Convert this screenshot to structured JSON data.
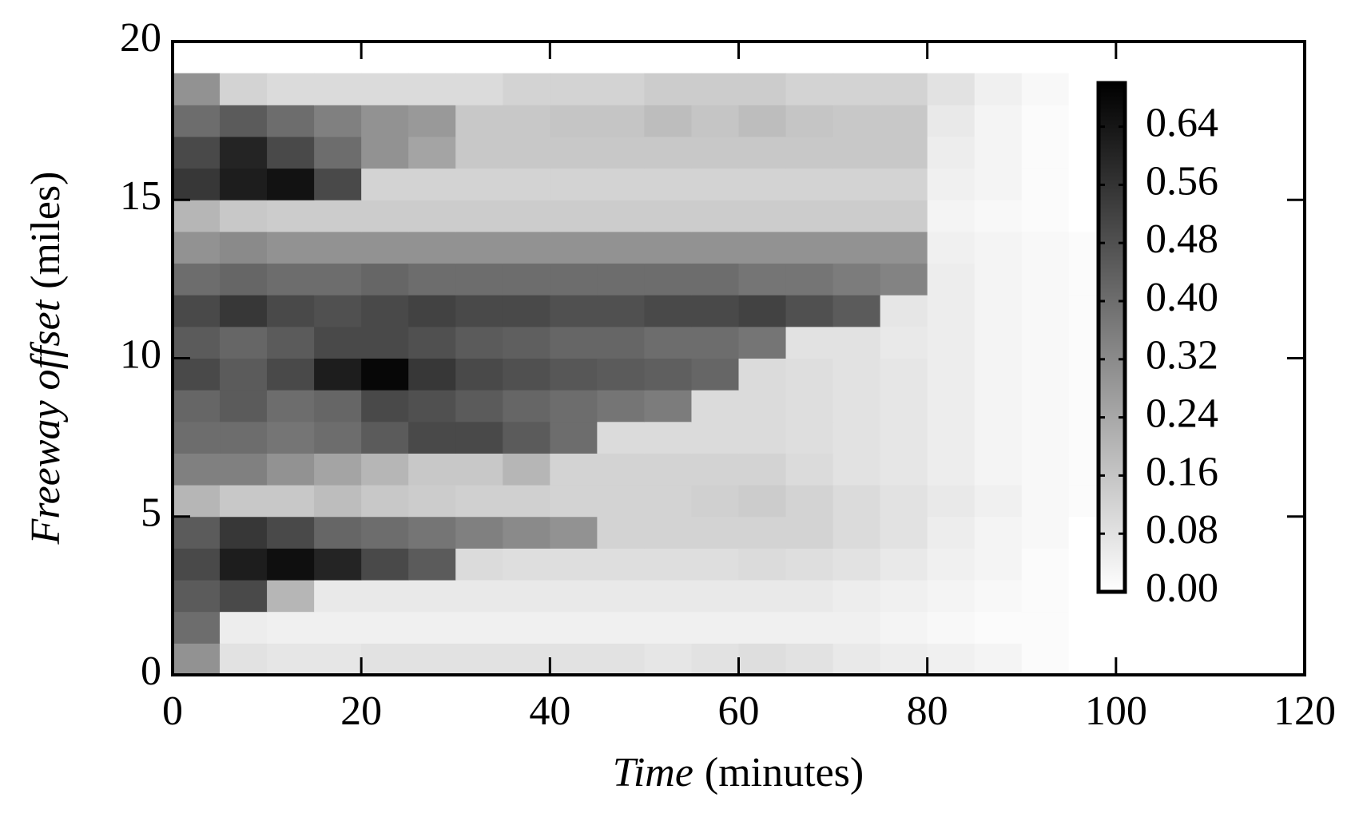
{
  "chart_data": {
    "type": "heatmap",
    "xlabel": [
      "Time",
      "(minutes)"
    ],
    "ylabel": [
      "Freeway offset",
      "(miles)"
    ],
    "x_bins": [
      0,
      5,
      10,
      15,
      20,
      25,
      30,
      35,
      40,
      45,
      50,
      55,
      60,
      65,
      70,
      75,
      80,
      85,
      90,
      95,
      100
    ],
    "y_bins": [
      0,
      1,
      2,
      3,
      4,
      5,
      6,
      7,
      8,
      9,
      10,
      11,
      12,
      13,
      14,
      15,
      16,
      17,
      18,
      19
    ],
    "z": [
      [
        0.3,
        0.08,
        0.07,
        0.07,
        0.08,
        0.08,
        0.08,
        0.08,
        0.08,
        0.08,
        0.07,
        0.08,
        0.09,
        0.08,
        0.06,
        0.05,
        0.04,
        0.03,
        0.01,
        0.0
      ],
      [
        0.4,
        0.05,
        0.04,
        0.04,
        0.04,
        0.04,
        0.04,
        0.04,
        0.04,
        0.04,
        0.04,
        0.04,
        0.04,
        0.04,
        0.04,
        0.03,
        0.02,
        0.01,
        0.01,
        0.0
      ],
      [
        0.45,
        0.5,
        0.2,
        0.06,
        0.06,
        0.06,
        0.06,
        0.06,
        0.06,
        0.06,
        0.06,
        0.06,
        0.06,
        0.06,
        0.05,
        0.04,
        0.03,
        0.02,
        0.01,
        0.0
      ],
      [
        0.5,
        0.62,
        0.66,
        0.6,
        0.5,
        0.45,
        0.1,
        0.09,
        0.09,
        0.09,
        0.09,
        0.09,
        0.1,
        0.09,
        0.08,
        0.06,
        0.04,
        0.03,
        0.01,
        0.0
      ],
      [
        0.45,
        0.55,
        0.5,
        0.42,
        0.4,
        0.38,
        0.35,
        0.32,
        0.3,
        0.12,
        0.12,
        0.12,
        0.12,
        0.12,
        0.1,
        0.08,
        0.05,
        0.03,
        0.02,
        0.0
      ],
      [
        0.2,
        0.15,
        0.15,
        0.18,
        0.15,
        0.14,
        0.13,
        0.13,
        0.12,
        0.12,
        0.12,
        0.13,
        0.14,
        0.12,
        0.1,
        0.08,
        0.06,
        0.04,
        0.02,
        0.01
      ],
      [
        0.35,
        0.35,
        0.3,
        0.25,
        0.2,
        0.15,
        0.15,
        0.2,
        0.12,
        0.12,
        0.12,
        0.12,
        0.12,
        0.1,
        0.08,
        0.07,
        0.05,
        0.03,
        0.02,
        0.01
      ],
      [
        0.4,
        0.4,
        0.38,
        0.4,
        0.45,
        0.5,
        0.5,
        0.45,
        0.4,
        0.1,
        0.1,
        0.1,
        0.1,
        0.09,
        0.08,
        0.07,
        0.05,
        0.03,
        0.02,
        0.01
      ],
      [
        0.42,
        0.45,
        0.4,
        0.42,
        0.5,
        0.48,
        0.45,
        0.42,
        0.4,
        0.38,
        0.36,
        0.1,
        0.1,
        0.09,
        0.08,
        0.07,
        0.05,
        0.03,
        0.02,
        0.01
      ],
      [
        0.5,
        0.45,
        0.5,
        0.62,
        0.68,
        0.55,
        0.5,
        0.48,
        0.46,
        0.45,
        0.44,
        0.42,
        0.1,
        0.09,
        0.08,
        0.07,
        0.05,
        0.03,
        0.02,
        0.01
      ],
      [
        0.45,
        0.42,
        0.45,
        0.5,
        0.5,
        0.48,
        0.45,
        0.44,
        0.42,
        0.42,
        0.4,
        0.4,
        0.38,
        0.08,
        0.08,
        0.06,
        0.05,
        0.03,
        0.02,
        0.01
      ],
      [
        0.5,
        0.55,
        0.5,
        0.48,
        0.5,
        0.52,
        0.5,
        0.5,
        0.48,
        0.48,
        0.5,
        0.5,
        0.52,
        0.48,
        0.45,
        0.07,
        0.05,
        0.03,
        0.02,
        0.01
      ],
      [
        0.4,
        0.42,
        0.4,
        0.4,
        0.42,
        0.4,
        0.4,
        0.4,
        0.4,
        0.4,
        0.4,
        0.4,
        0.38,
        0.38,
        0.36,
        0.34,
        0.05,
        0.03,
        0.02,
        0.01
      ],
      [
        0.3,
        0.32,
        0.3,
        0.3,
        0.3,
        0.3,
        0.3,
        0.3,
        0.3,
        0.3,
        0.3,
        0.3,
        0.3,
        0.3,
        0.3,
        0.3,
        0.04,
        0.03,
        0.02,
        0.01
      ],
      [
        0.2,
        0.15,
        0.14,
        0.14,
        0.14,
        0.14,
        0.14,
        0.14,
        0.14,
        0.14,
        0.14,
        0.14,
        0.14,
        0.14,
        0.14,
        0.14,
        0.03,
        0.02,
        0.01,
        0.0
      ],
      [
        0.55,
        0.62,
        0.65,
        0.5,
        0.12,
        0.12,
        0.12,
        0.12,
        0.12,
        0.12,
        0.12,
        0.12,
        0.12,
        0.12,
        0.12,
        0.12,
        0.04,
        0.03,
        0.01,
        0.0
      ],
      [
        0.5,
        0.6,
        0.5,
        0.4,
        0.3,
        0.25,
        0.15,
        0.15,
        0.15,
        0.15,
        0.15,
        0.15,
        0.15,
        0.15,
        0.15,
        0.15,
        0.05,
        0.03,
        0.01,
        0.0
      ],
      [
        0.4,
        0.45,
        0.4,
        0.35,
        0.3,
        0.28,
        0.15,
        0.15,
        0.16,
        0.16,
        0.18,
        0.16,
        0.18,
        0.16,
        0.15,
        0.15,
        0.06,
        0.03,
        0.01,
        0.0
      ],
      [
        0.3,
        0.12,
        0.1,
        0.1,
        0.1,
        0.1,
        0.1,
        0.12,
        0.12,
        0.12,
        0.14,
        0.14,
        0.14,
        0.12,
        0.12,
        0.12,
        0.08,
        0.04,
        0.02,
        0.0
      ]
    ],
    "xlim": [
      0,
      120
    ],
    "xticks": [
      0,
      20,
      40,
      60,
      80,
      100,
      120
    ],
    "ylim": [
      0,
      20
    ],
    "yticks": [
      0,
      5,
      10,
      15,
      20
    ],
    "zlim": [
      0,
      0.7
    ],
    "zticks": [
      {
        "value": 0,
        "label": "0.00"
      },
      0.08,
      0.16,
      0.24,
      0.32,
      {
        "value": 0.4,
        "label": "0.40"
      },
      0.48,
      0.56,
      0.64
    ],
    "colormap": [
      "#ffffff",
      "#000000"
    ]
  }
}
